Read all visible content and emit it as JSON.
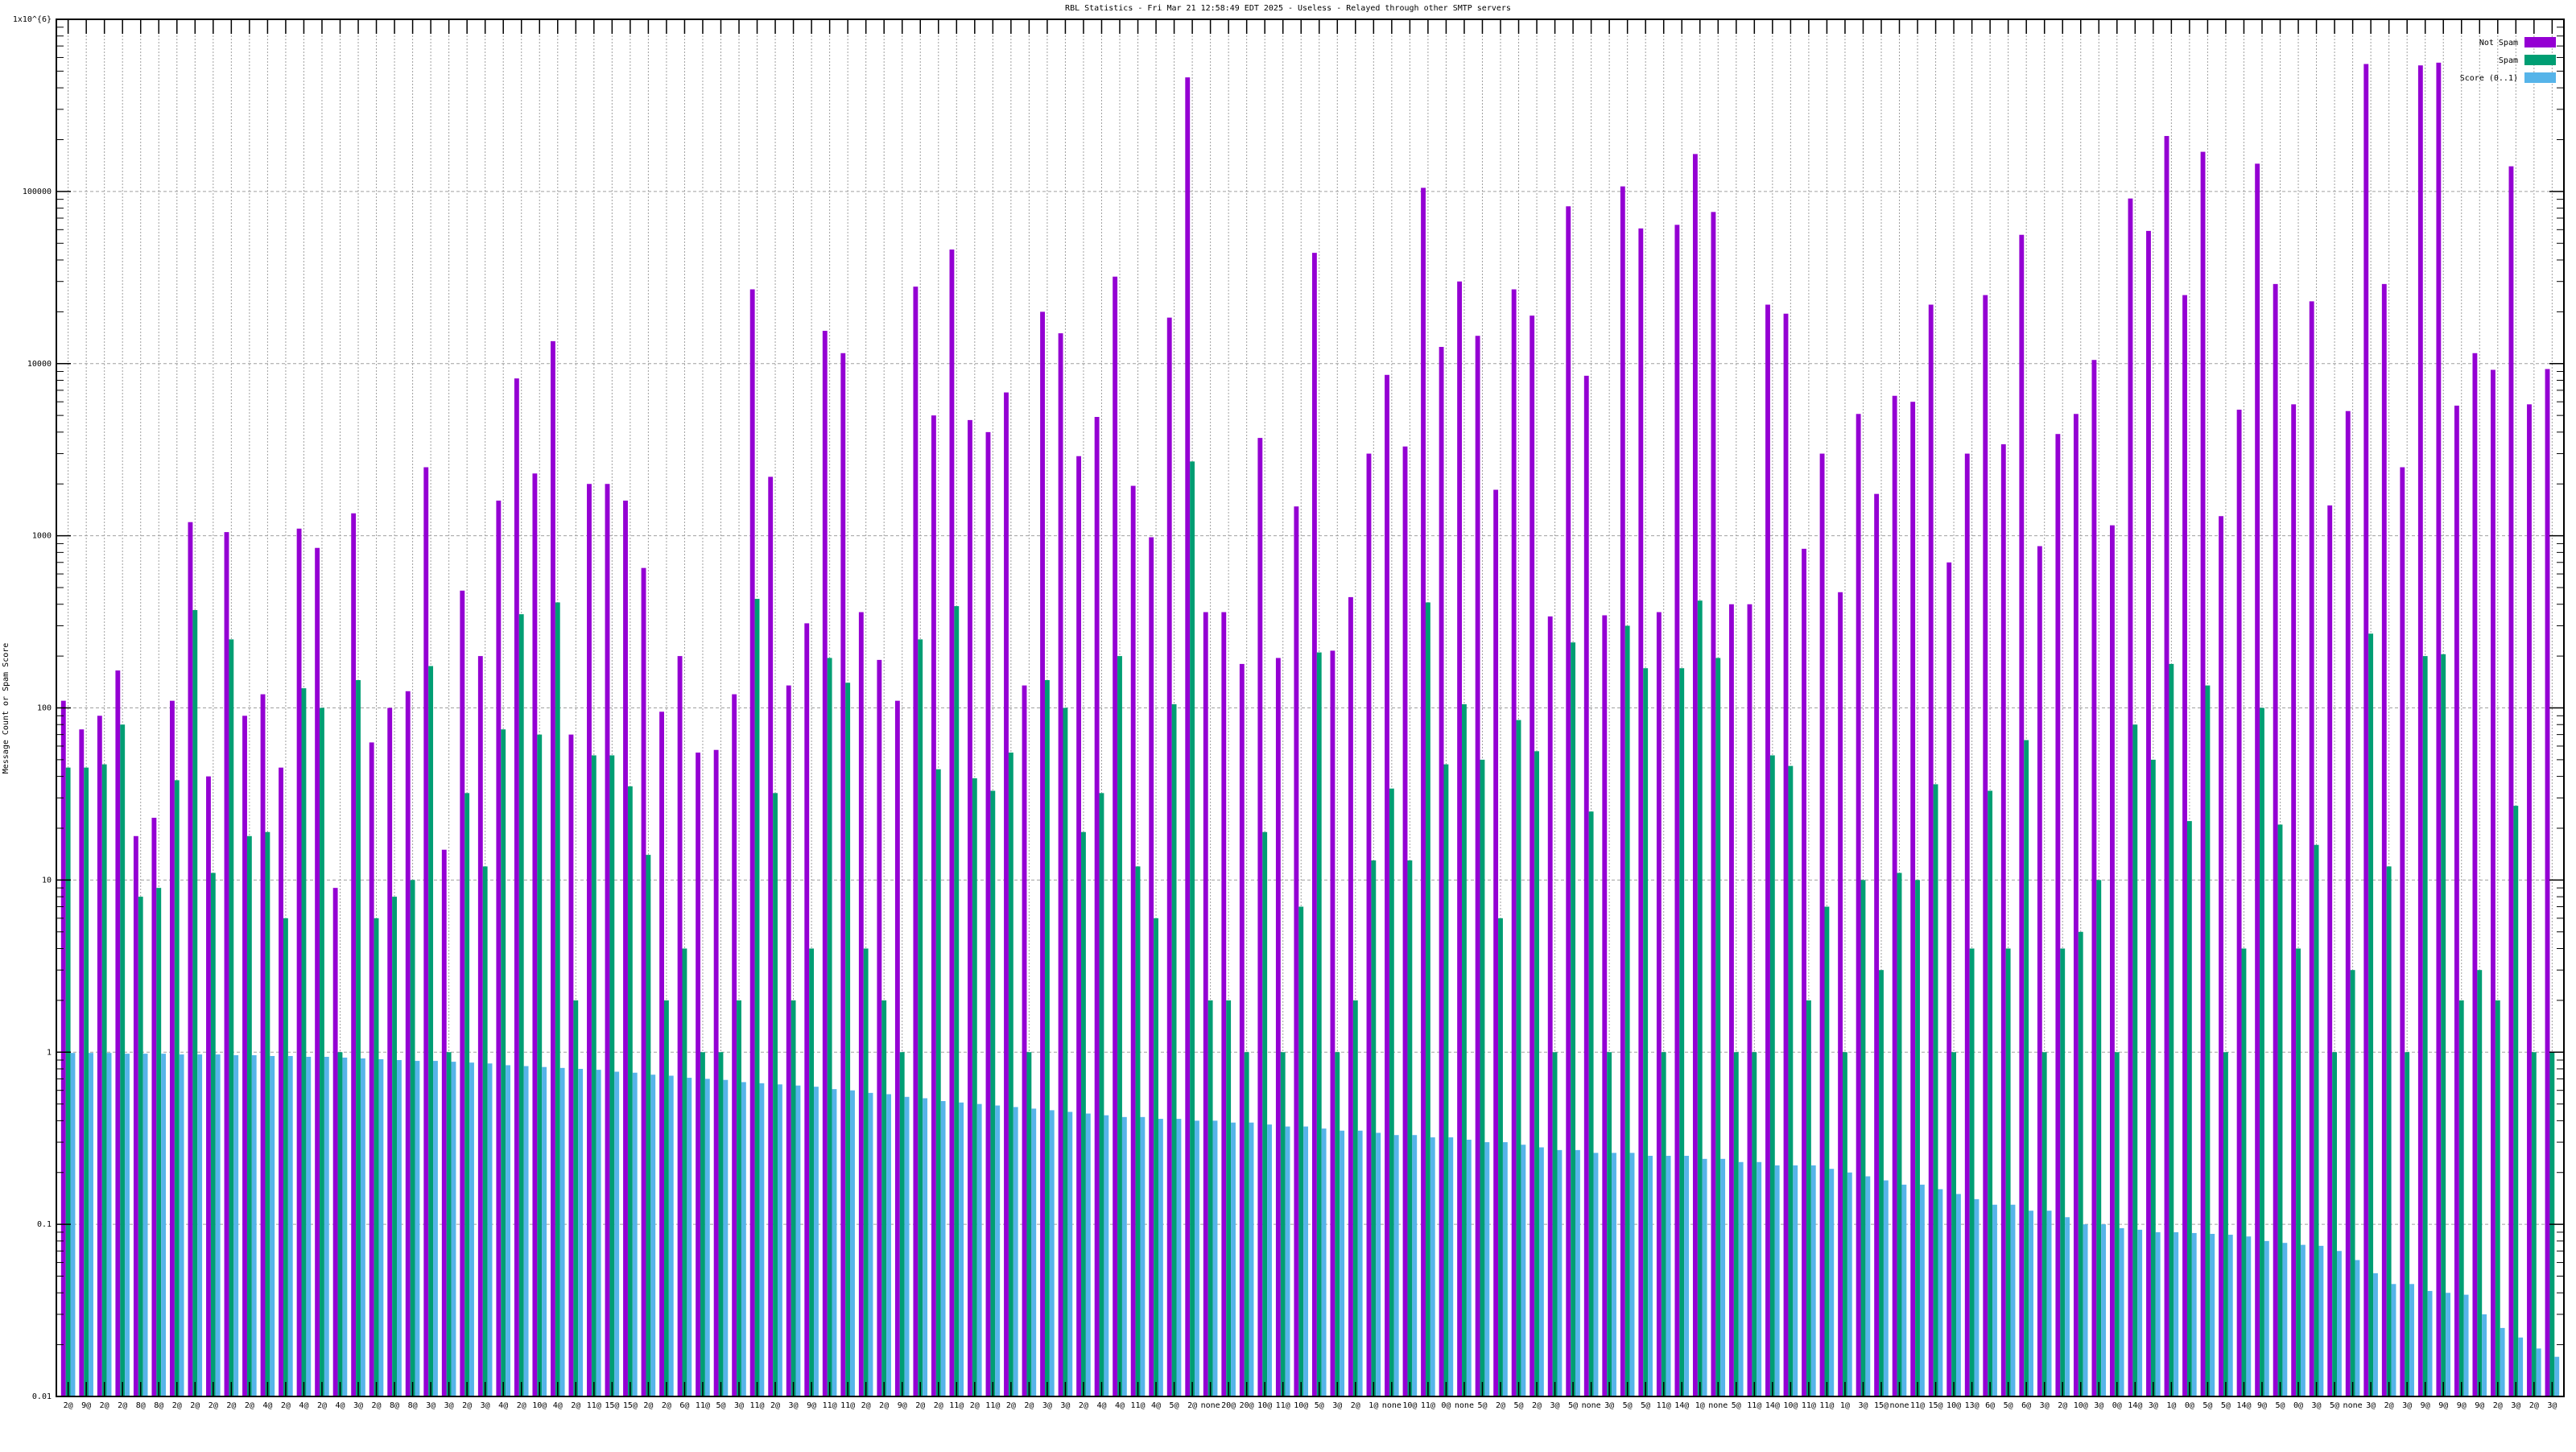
{
  "chart_data": {
    "type": "bar",
    "title": "RBL Statistics - Fri Mar 21 12:58:49 EDT 2025 - Useless - Relayed through other SMTP servers",
    "xlabel": "",
    "ylabel": "Message Count or Spam Score",
    "yscale": "log",
    "ylim": [
      0.01,
      1000000
    ],
    "ytick_labels": [
      "0.01",
      "0.1",
      "1",
      "10",
      "100",
      "1000",
      "10000",
      "100000",
      "1x10^{6}"
    ],
    "grid": true,
    "legend_position": "top-right",
    "categories": [
      "2@",
      "9@",
      "2@",
      "2@",
      "8@",
      "8@",
      "2@",
      "2@",
      "2@",
      "2@",
      "2@",
      "4@",
      "2@",
      "4@",
      "2@",
      "4@",
      "3@",
      "2@",
      "8@",
      "8@",
      "3@",
      "3@",
      "2@",
      "3@",
      "4@",
      "2@",
      "10@",
      "4@",
      "2@",
      "11@",
      "15@",
      "15@",
      "2@",
      "2@",
      "6@",
      "11@",
      "5@",
      "3@",
      "11@",
      "2@",
      "3@",
      "9@",
      "11@",
      "11@",
      "2@",
      "2@",
      "9@",
      "2@",
      "2@",
      "11@",
      "2@",
      "11@",
      "2@",
      "2@",
      "3@",
      "3@",
      "2@",
      "4@",
      "4@",
      "11@",
      "4@",
      "5@",
      "2@",
      "none",
      "20@",
      "20@",
      "10@",
      "11@",
      "10@",
      "5@",
      "3@",
      "2@",
      "1@",
      "none",
      "10@",
      "11@",
      "0@",
      "none",
      "5@",
      "2@",
      "5@",
      "2@",
      "3@",
      "5@",
      "none",
      "3@",
      "5@",
      "5@",
      "11@",
      "14@",
      "1@",
      "none",
      "5@",
      "11@",
      "14@",
      "10@",
      "11@",
      "11@",
      "1@",
      "3@",
      "15@",
      "none",
      "11@",
      "15@",
      "10@",
      "13@",
      "6@",
      "5@",
      "6@",
      "3@",
      "2@",
      "10@",
      "3@",
      "0@",
      "14@",
      "3@",
      "1@",
      "0@",
      "5@",
      "5@",
      "14@",
      "9@",
      "5@",
      "0@",
      "3@",
      "5@",
      "none",
      "3@",
      "2@",
      "3@",
      "9@",
      "9@",
      "9@",
      "9@",
      "2@",
      "3@",
      "2@",
      "3@"
    ],
    "series": [
      {
        "name": "Not Spam",
        "color": "#9400d3",
        "values": [
          110,
          75,
          90,
          165,
          18,
          23,
          110,
          1200,
          40,
          1050,
          90,
          120,
          45,
          1100,
          850,
          9,
          1350,
          63,
          100,
          125,
          2500,
          15,
          480,
          200,
          1600,
          8200,
          2300,
          13500,
          70,
          2000,
          2000,
          1600,
          650,
          95,
          200,
          55,
          57,
          120,
          27000,
          2200,
          135,
          310,
          15500,
          11500,
          360,
          190,
          110,
          28000,
          5000,
          46000,
          4700,
          4000,
          6800,
          135,
          20000,
          15000,
          2900,
          4900,
          32000,
          1950,
          980,
          18500,
          460000,
          360,
          360,
          180,
          3700,
          195,
          1480,
          44000,
          215,
          440,
          3000,
          8600,
          3300,
          105000,
          12500,
          30000,
          14500,
          1850,
          27000,
          19000,
          340,
          82000,
          8500,
          345,
          107000,
          61000,
          360,
          64000,
          165000,
          76000,
          400,
          400,
          22000,
          19500,
          840,
          3000,
          470,
          5100,
          1750,
          6500,
          6000,
          22000,
          700,
          3000,
          25000,
          3400,
          56000,
          870,
          3900,
          5100,
          10500,
          1150,
          91000,
          59000,
          210000,
          25000,
          170000,
          1300,
          5400,
          145000,
          29000,
          5800,
          23000,
          1500,
          5300,
          550000,
          29000,
          2500,
          540000,
          560000,
          5700,
          11500,
          9200,
          140000,
          5800,
          9300
        ]
      },
      {
        "name": "Spam",
        "color": "#009e73",
        "values": [
          45,
          45,
          47,
          80,
          8,
          9,
          38,
          370,
          11,
          250,
          18,
          19,
          6,
          130,
          100,
          1,
          145,
          6,
          8,
          10,
          175,
          1,
          32,
          12,
          75,
          350,
          70,
          410,
          2,
          53,
          53,
          35,
          14,
          2,
          4,
          1,
          1,
          2,
          430,
          32,
          2,
          4,
          195,
          140,
          4,
          2,
          1,
          250,
          44,
          390,
          39,
          33,
          55,
          1,
          145,
          100,
          19,
          32,
          200,
          12,
          6,
          105,
          2700,
          2,
          2,
          1,
          19,
          1,
          7,
          210,
          1,
          2,
          13,
          34,
          13,
          410,
          47,
          105,
          50,
          6,
          85,
          56,
          1,
          240,
          25,
          1,
          300,
          170,
          1,
          170,
          420,
          195,
          1,
          1,
          53,
          46,
          2,
          7,
          1,
          10,
          3,
          11,
          10,
          36,
          1,
          4,
          33,
          4,
          65,
          1,
          4,
          5,
          10,
          1,
          80,
          50,
          180,
          22,
          135,
          1,
          4,
          100,
          21,
          4,
          16,
          1,
          3,
          270,
          12,
          1,
          200,
          205,
          2,
          3,
          2,
          27,
          1,
          1
        ]
      },
      {
        "name": "Score (0..1)",
        "color": "#56b4e9",
        "values": [
          0.99,
          0.99,
          0.99,
          0.98,
          0.98,
          0.98,
          0.97,
          0.97,
          0.97,
          0.96,
          0.96,
          0.95,
          0.95,
          0.94,
          0.94,
          0.93,
          0.92,
          0.91,
          0.9,
          0.89,
          0.89,
          0.88,
          0.87,
          0.86,
          0.84,
          0.83,
          0.82,
          0.81,
          0.8,
          0.79,
          0.77,
          0.76,
          0.74,
          0.73,
          0.71,
          0.7,
          0.69,
          0.67,
          0.66,
          0.65,
          0.64,
          0.63,
          0.61,
          0.6,
          0.58,
          0.57,
          0.55,
          0.54,
          0.52,
          0.51,
          0.5,
          0.49,
          0.48,
          0.47,
          0.46,
          0.45,
          0.44,
          0.43,
          0.42,
          0.42,
          0.41,
          0.41,
          0.4,
          0.4,
          0.39,
          0.39,
          0.38,
          0.37,
          0.37,
          0.36,
          0.35,
          0.35,
          0.34,
          0.33,
          0.33,
          0.32,
          0.32,
          0.31,
          0.3,
          0.3,
          0.29,
          0.28,
          0.27,
          0.27,
          0.26,
          0.26,
          0.26,
          0.25,
          0.25,
          0.25,
          0.24,
          0.24,
          0.23,
          0.23,
          0.22,
          0.22,
          0.22,
          0.21,
          0.2,
          0.19,
          0.18,
          0.17,
          0.17,
          0.16,
          0.15,
          0.14,
          0.13,
          0.13,
          0.12,
          0.12,
          0.11,
          0.1,
          0.1,
          0.095,
          0.093,
          0.09,
          0.09,
          0.089,
          0.088,
          0.087,
          0.085,
          0.08,
          0.078,
          0.076,
          0.075,
          0.07,
          0.062,
          0.052,
          0.045,
          0.045,
          0.041,
          0.04,
          0.039,
          0.03,
          0.025,
          0.022,
          0.019,
          0.017
        ]
      }
    ]
  }
}
